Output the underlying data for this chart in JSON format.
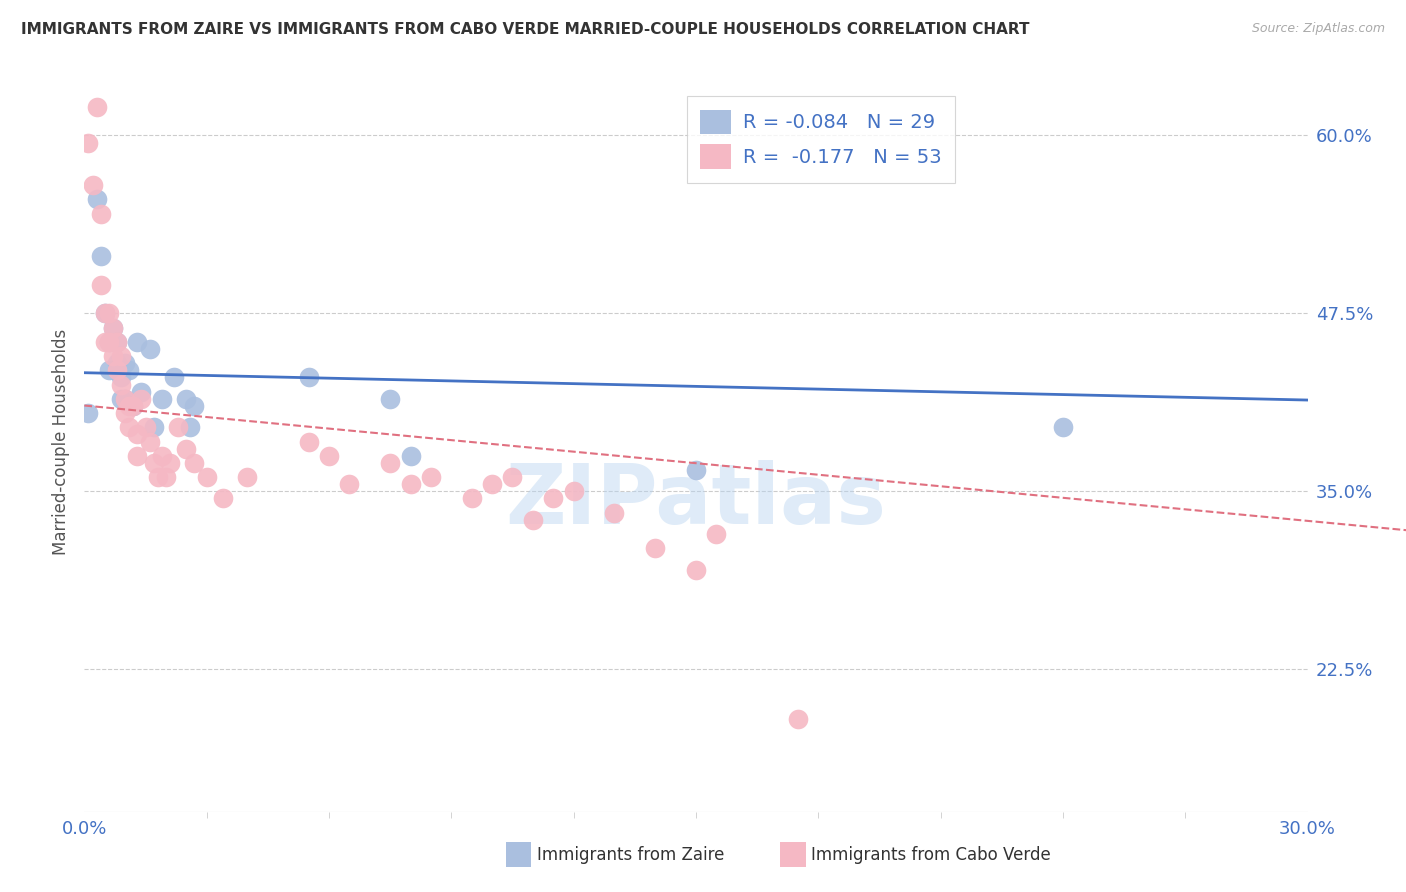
{
  "title": "IMMIGRANTS FROM ZAIRE VS IMMIGRANTS FROM CABO VERDE MARRIED-COUPLE HOUSEHOLDS CORRELATION CHART",
  "source": "Source: ZipAtlas.com",
  "ylabel": "Married-couple Households",
  "xlim": [
    0.0,
    0.3
  ],
  "ylim": [
    0.125,
    0.645
  ],
  "yticks": [
    0.225,
    0.35,
    0.475,
    0.6
  ],
  "ytick_labels": [
    "22.5%",
    "35.0%",
    "47.5%",
    "60.0%"
  ],
  "xticks": [
    0.0,
    0.3
  ],
  "xtick_labels": [
    "0.0%",
    "30.0%"
  ],
  "grid_color": "#cccccc",
  "background_color": "#ffffff",
  "watermark": "ZIPatlas",
  "zaire_color": "#aabfdf",
  "cabo_color": "#f5b8c4",
  "zaire_line_color": "#4472C4",
  "cabo_line_color": "#e07080",
  "zaire_R": -0.084,
  "zaire_N": 29,
  "cabo_R": -0.177,
  "cabo_N": 53,
  "zaire_points": [
    [
      0.001,
      0.405
    ],
    [
      0.003,
      0.555
    ],
    [
      0.004,
      0.515
    ],
    [
      0.005,
      0.475
    ],
    [
      0.006,
      0.455
    ],
    [
      0.006,
      0.435
    ],
    [
      0.007,
      0.465
    ],
    [
      0.008,
      0.455
    ],
    [
      0.008,
      0.44
    ],
    [
      0.009,
      0.43
    ],
    [
      0.009,
      0.415
    ],
    [
      0.01,
      0.44
    ],
    [
      0.01,
      0.415
    ],
    [
      0.011,
      0.435
    ],
    [
      0.012,
      0.41
    ],
    [
      0.013,
      0.455
    ],
    [
      0.014,
      0.42
    ],
    [
      0.016,
      0.45
    ],
    [
      0.017,
      0.395
    ],
    [
      0.019,
      0.415
    ],
    [
      0.022,
      0.43
    ],
    [
      0.025,
      0.415
    ],
    [
      0.026,
      0.395
    ],
    [
      0.027,
      0.41
    ],
    [
      0.055,
      0.43
    ],
    [
      0.075,
      0.415
    ],
    [
      0.08,
      0.375
    ],
    [
      0.15,
      0.365
    ],
    [
      0.24,
      0.395
    ]
  ],
  "cabo_points": [
    [
      0.001,
      0.595
    ],
    [
      0.002,
      0.565
    ],
    [
      0.003,
      0.62
    ],
    [
      0.004,
      0.545
    ],
    [
      0.004,
      0.495
    ],
    [
      0.005,
      0.475
    ],
    [
      0.005,
      0.455
    ],
    [
      0.006,
      0.475
    ],
    [
      0.006,
      0.455
    ],
    [
      0.007,
      0.465
    ],
    [
      0.007,
      0.445
    ],
    [
      0.008,
      0.455
    ],
    [
      0.008,
      0.435
    ],
    [
      0.009,
      0.445
    ],
    [
      0.009,
      0.425
    ],
    [
      0.01,
      0.415
    ],
    [
      0.01,
      0.405
    ],
    [
      0.011,
      0.41
    ],
    [
      0.011,
      0.395
    ],
    [
      0.012,
      0.41
    ],
    [
      0.013,
      0.39
    ],
    [
      0.013,
      0.375
    ],
    [
      0.014,
      0.415
    ],
    [
      0.015,
      0.395
    ],
    [
      0.016,
      0.385
    ],
    [
      0.017,
      0.37
    ],
    [
      0.018,
      0.36
    ],
    [
      0.019,
      0.375
    ],
    [
      0.02,
      0.36
    ],
    [
      0.021,
      0.37
    ],
    [
      0.023,
      0.395
    ],
    [
      0.025,
      0.38
    ],
    [
      0.027,
      0.37
    ],
    [
      0.03,
      0.36
    ],
    [
      0.034,
      0.345
    ],
    [
      0.04,
      0.36
    ],
    [
      0.055,
      0.385
    ],
    [
      0.06,
      0.375
    ],
    [
      0.065,
      0.355
    ],
    [
      0.075,
      0.37
    ],
    [
      0.08,
      0.355
    ],
    [
      0.085,
      0.36
    ],
    [
      0.095,
      0.345
    ],
    [
      0.1,
      0.355
    ],
    [
      0.105,
      0.36
    ],
    [
      0.11,
      0.33
    ],
    [
      0.115,
      0.345
    ],
    [
      0.12,
      0.35
    ],
    [
      0.13,
      0.335
    ],
    [
      0.14,
      0.31
    ],
    [
      0.15,
      0.295
    ],
    [
      0.155,
      0.32
    ],
    [
      0.175,
      0.19
    ]
  ]
}
